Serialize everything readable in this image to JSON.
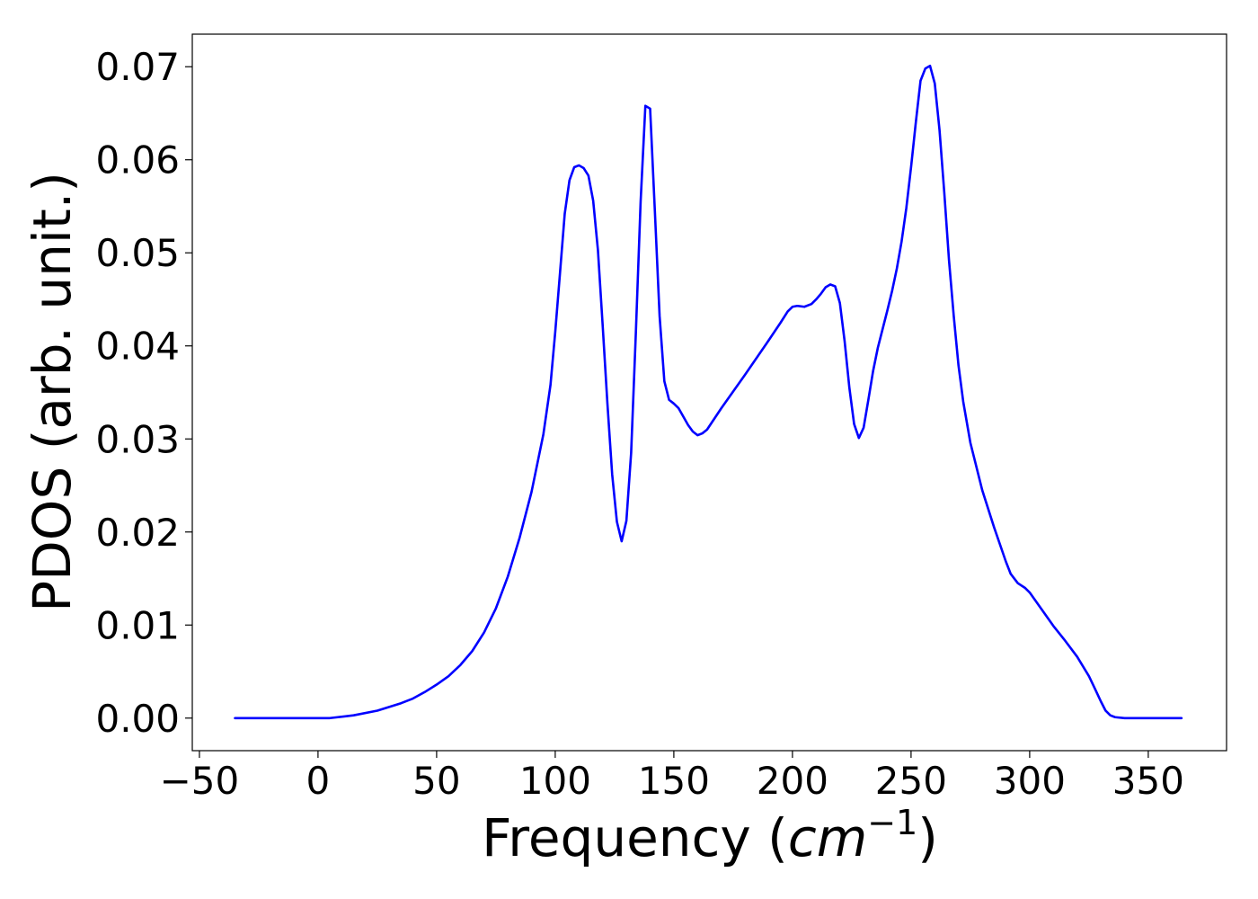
{
  "chart_data": {
    "type": "line",
    "title": "",
    "xlabel_main": "Frequency (",
    "xlabel_unit": "cm",
    "xlabel_exp": "−1",
    "xlabel_close": ")",
    "ylabel": "PDOS (arb. unit.)",
    "xlim": [
      -53,
      383
    ],
    "ylim": [
      -0.0035,
      0.0735
    ],
    "xticks": [
      -50,
      0,
      50,
      100,
      150,
      200,
      250,
      300,
      350
    ],
    "xtick_labels": [
      "−50",
      "0",
      "50",
      "100",
      "150",
      "200",
      "250",
      "300",
      "350"
    ],
    "yticks": [
      0.0,
      0.01,
      0.02,
      0.03,
      0.04,
      0.05,
      0.06,
      0.07
    ],
    "ytick_labels": [
      "0.00",
      "0.01",
      "0.02",
      "0.03",
      "0.04",
      "0.05",
      "0.06",
      "0.07"
    ],
    "grid": false,
    "series": [
      {
        "color": "#0000ff",
        "x": [
          -35,
          -20,
          0,
          5,
          15,
          25,
          35,
          40,
          45,
          50,
          55,
          60,
          65,
          70,
          75,
          80,
          85,
          90,
          95,
          98,
          100,
          102,
          104,
          106,
          108,
          110,
          112,
          114,
          116,
          118,
          120,
          122,
          124,
          126,
          128,
          130,
          132,
          134,
          136,
          138,
          140,
          142,
          144,
          146,
          148,
          150,
          152,
          156,
          158,
          160,
          162,
          164,
          170,
          180,
          190,
          195,
          198,
          200,
          202,
          205,
          208,
          210,
          212,
          214,
          216,
          218,
          220,
          222,
          224,
          226,
          228,
          230,
          232,
          234,
          236,
          238,
          240,
          242,
          244,
          246,
          248,
          250,
          252,
          254,
          256,
          258,
          260,
          262,
          264,
          266,
          268,
          270,
          272,
          275,
          280,
          285,
          290,
          292,
          295,
          298,
          300,
          305,
          310,
          315,
          320,
          325,
          328,
          330,
          332,
          334,
          336,
          340,
          350,
          364
        ],
        "y": [
          0.0,
          0.0,
          0.0,
          0.0,
          0.0003,
          0.0008,
          0.0016,
          0.0021,
          0.0028,
          0.0036,
          0.0045,
          0.0057,
          0.0072,
          0.0092,
          0.0118,
          0.0152,
          0.0194,
          0.0243,
          0.0305,
          0.0358,
          0.0415,
          0.0478,
          0.0542,
          0.0578,
          0.0592,
          0.0594,
          0.0591,
          0.0583,
          0.0556,
          0.0503,
          0.0422,
          0.0338,
          0.0262,
          0.0211,
          0.019,
          0.0212,
          0.0285,
          0.0415,
          0.0555,
          0.0658,
          0.0655,
          0.0545,
          0.0432,
          0.0362,
          0.0342,
          0.0338,
          0.0333,
          0.0315,
          0.0308,
          0.0304,
          0.0306,
          0.031,
          0.0333,
          0.0369,
          0.0406,
          0.0425,
          0.0437,
          0.0442,
          0.0443,
          0.0442,
          0.0445,
          0.045,
          0.0456,
          0.0463,
          0.0466,
          0.0464,
          0.0446,
          0.0405,
          0.0355,
          0.0316,
          0.0301,
          0.0312,
          0.0342,
          0.0373,
          0.0398,
          0.0418,
          0.0438,
          0.0459,
          0.0483,
          0.0512,
          0.0548,
          0.0592,
          0.064,
          0.0685,
          0.0698,
          0.0701,
          0.0682,
          0.0632,
          0.0565,
          0.0492,
          0.0432,
          0.0379,
          0.034,
          0.0296,
          0.0245,
          0.0205,
          0.0168,
          0.0155,
          0.0145,
          0.014,
          0.0135,
          0.0117,
          0.0099,
          0.0083,
          0.0066,
          0.0045,
          0.0029,
          0.0018,
          0.0008,
          0.0003,
          0.0001,
          0.0,
          0.0,
          0.0
        ]
      }
    ]
  }
}
